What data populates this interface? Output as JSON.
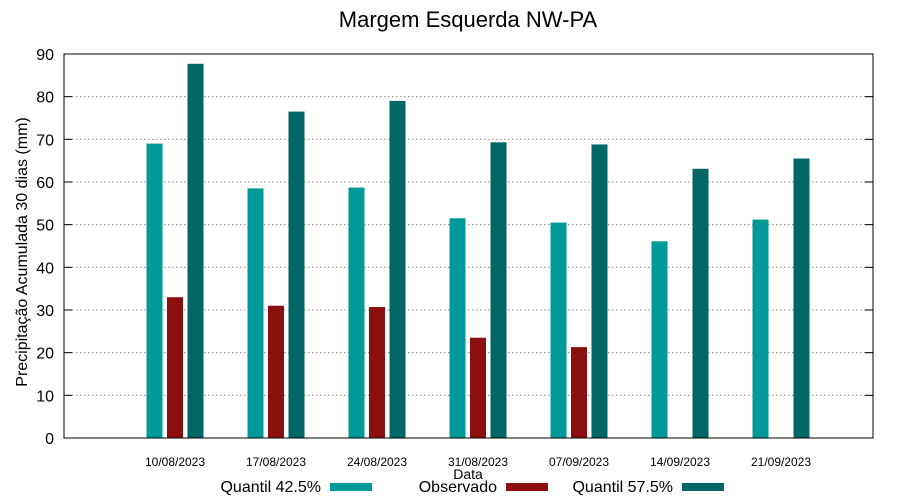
{
  "chart_data": {
    "type": "bar",
    "title": "Margem Esquerda NW-PA",
    "xlabel": "Data",
    "ylabel": "Precipitação Acumulada 30 dias (mm)",
    "ylim": [
      0,
      90
    ],
    "yticks": [
      0,
      10,
      20,
      30,
      40,
      50,
      60,
      70,
      80,
      90
    ],
    "grid": true,
    "legend_position": "bottom",
    "categories": [
      "10/08/2023",
      "17/08/2023",
      "24/08/2023",
      "31/08/2023",
      "07/09/2023",
      "14/09/2023",
      "21/09/2023"
    ],
    "series": [
      {
        "name": "Quantil 42.5%",
        "color": "#009999",
        "values": [
          69,
          58.5,
          58.7,
          51.5,
          50.5,
          46.1,
          51.2
        ]
      },
      {
        "name": "Observado",
        "color": "#8b0f0f",
        "values": [
          33,
          31,
          30.7,
          23.5,
          21.3,
          null,
          null
        ]
      },
      {
        "name": "Quantil 57.5%",
        "color": "#006666",
        "values": [
          87.7,
          76.5,
          79,
          69.3,
          68.8,
          63.1,
          65.5
        ]
      }
    ]
  }
}
